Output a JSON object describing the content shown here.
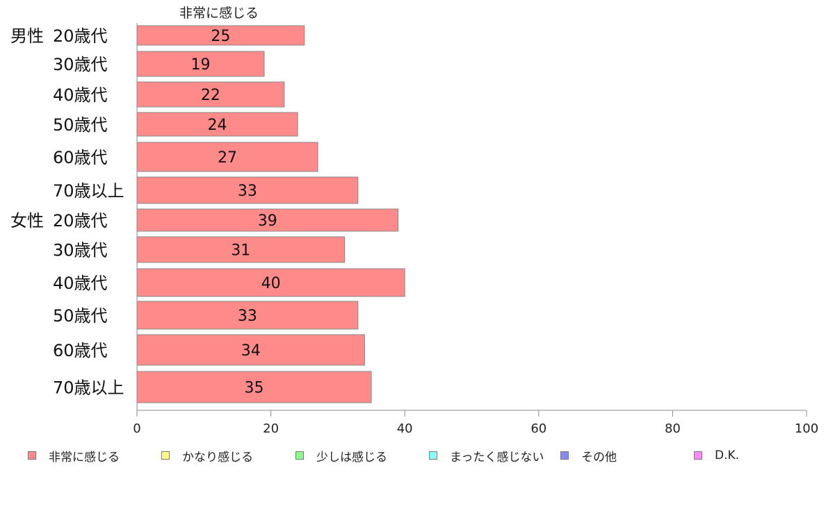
{
  "chart_data": {
    "type": "bar",
    "orientation": "horizontal",
    "series_label_top": "非常に感じる",
    "group_labels": [
      "男性",
      "女性"
    ],
    "categories": [
      {
        "group": "男性",
        "label": "20歳代"
      },
      {
        "group": "",
        "label": "30歳代"
      },
      {
        "group": "",
        "label": "40歳代"
      },
      {
        "group": "",
        "label": "50歳代"
      },
      {
        "group": "",
        "label": "60歳代"
      },
      {
        "group": "",
        "label": "70歳以上"
      },
      {
        "group": "女性",
        "label": "20歳代"
      },
      {
        "group": "",
        "label": "30歳代"
      },
      {
        "group": "",
        "label": "40歳代"
      },
      {
        "group": "",
        "label": "50歳代"
      },
      {
        "group": "",
        "label": "60歳代"
      },
      {
        "group": "",
        "label": "70歳以上"
      }
    ],
    "series": [
      {
        "name": "非常に感じる",
        "color": "#ff8a8a",
        "values": [
          25,
          19,
          22,
          24,
          27,
          33,
          39,
          31,
          40,
          33,
          34,
          35
        ]
      }
    ],
    "xlim": [
      0,
      100
    ],
    "xticks": [
      0,
      20,
      40,
      60,
      80,
      100
    ],
    "grid": false,
    "legend_position": "bottom"
  },
  "legend": [
    {
      "label": "非常に感じる",
      "color": "#ff8a8a"
    },
    {
      "label": "かなり感じる",
      "color": "#ffff88"
    },
    {
      "label": "少しは感じる",
      "color": "#88ff88"
    },
    {
      "label": "まったく感じない",
      "color": "#88ffff"
    },
    {
      "label": "その他",
      "color": "#8888ff"
    },
    {
      "label": "D.K.",
      "color": "#ff88ff"
    }
  ]
}
